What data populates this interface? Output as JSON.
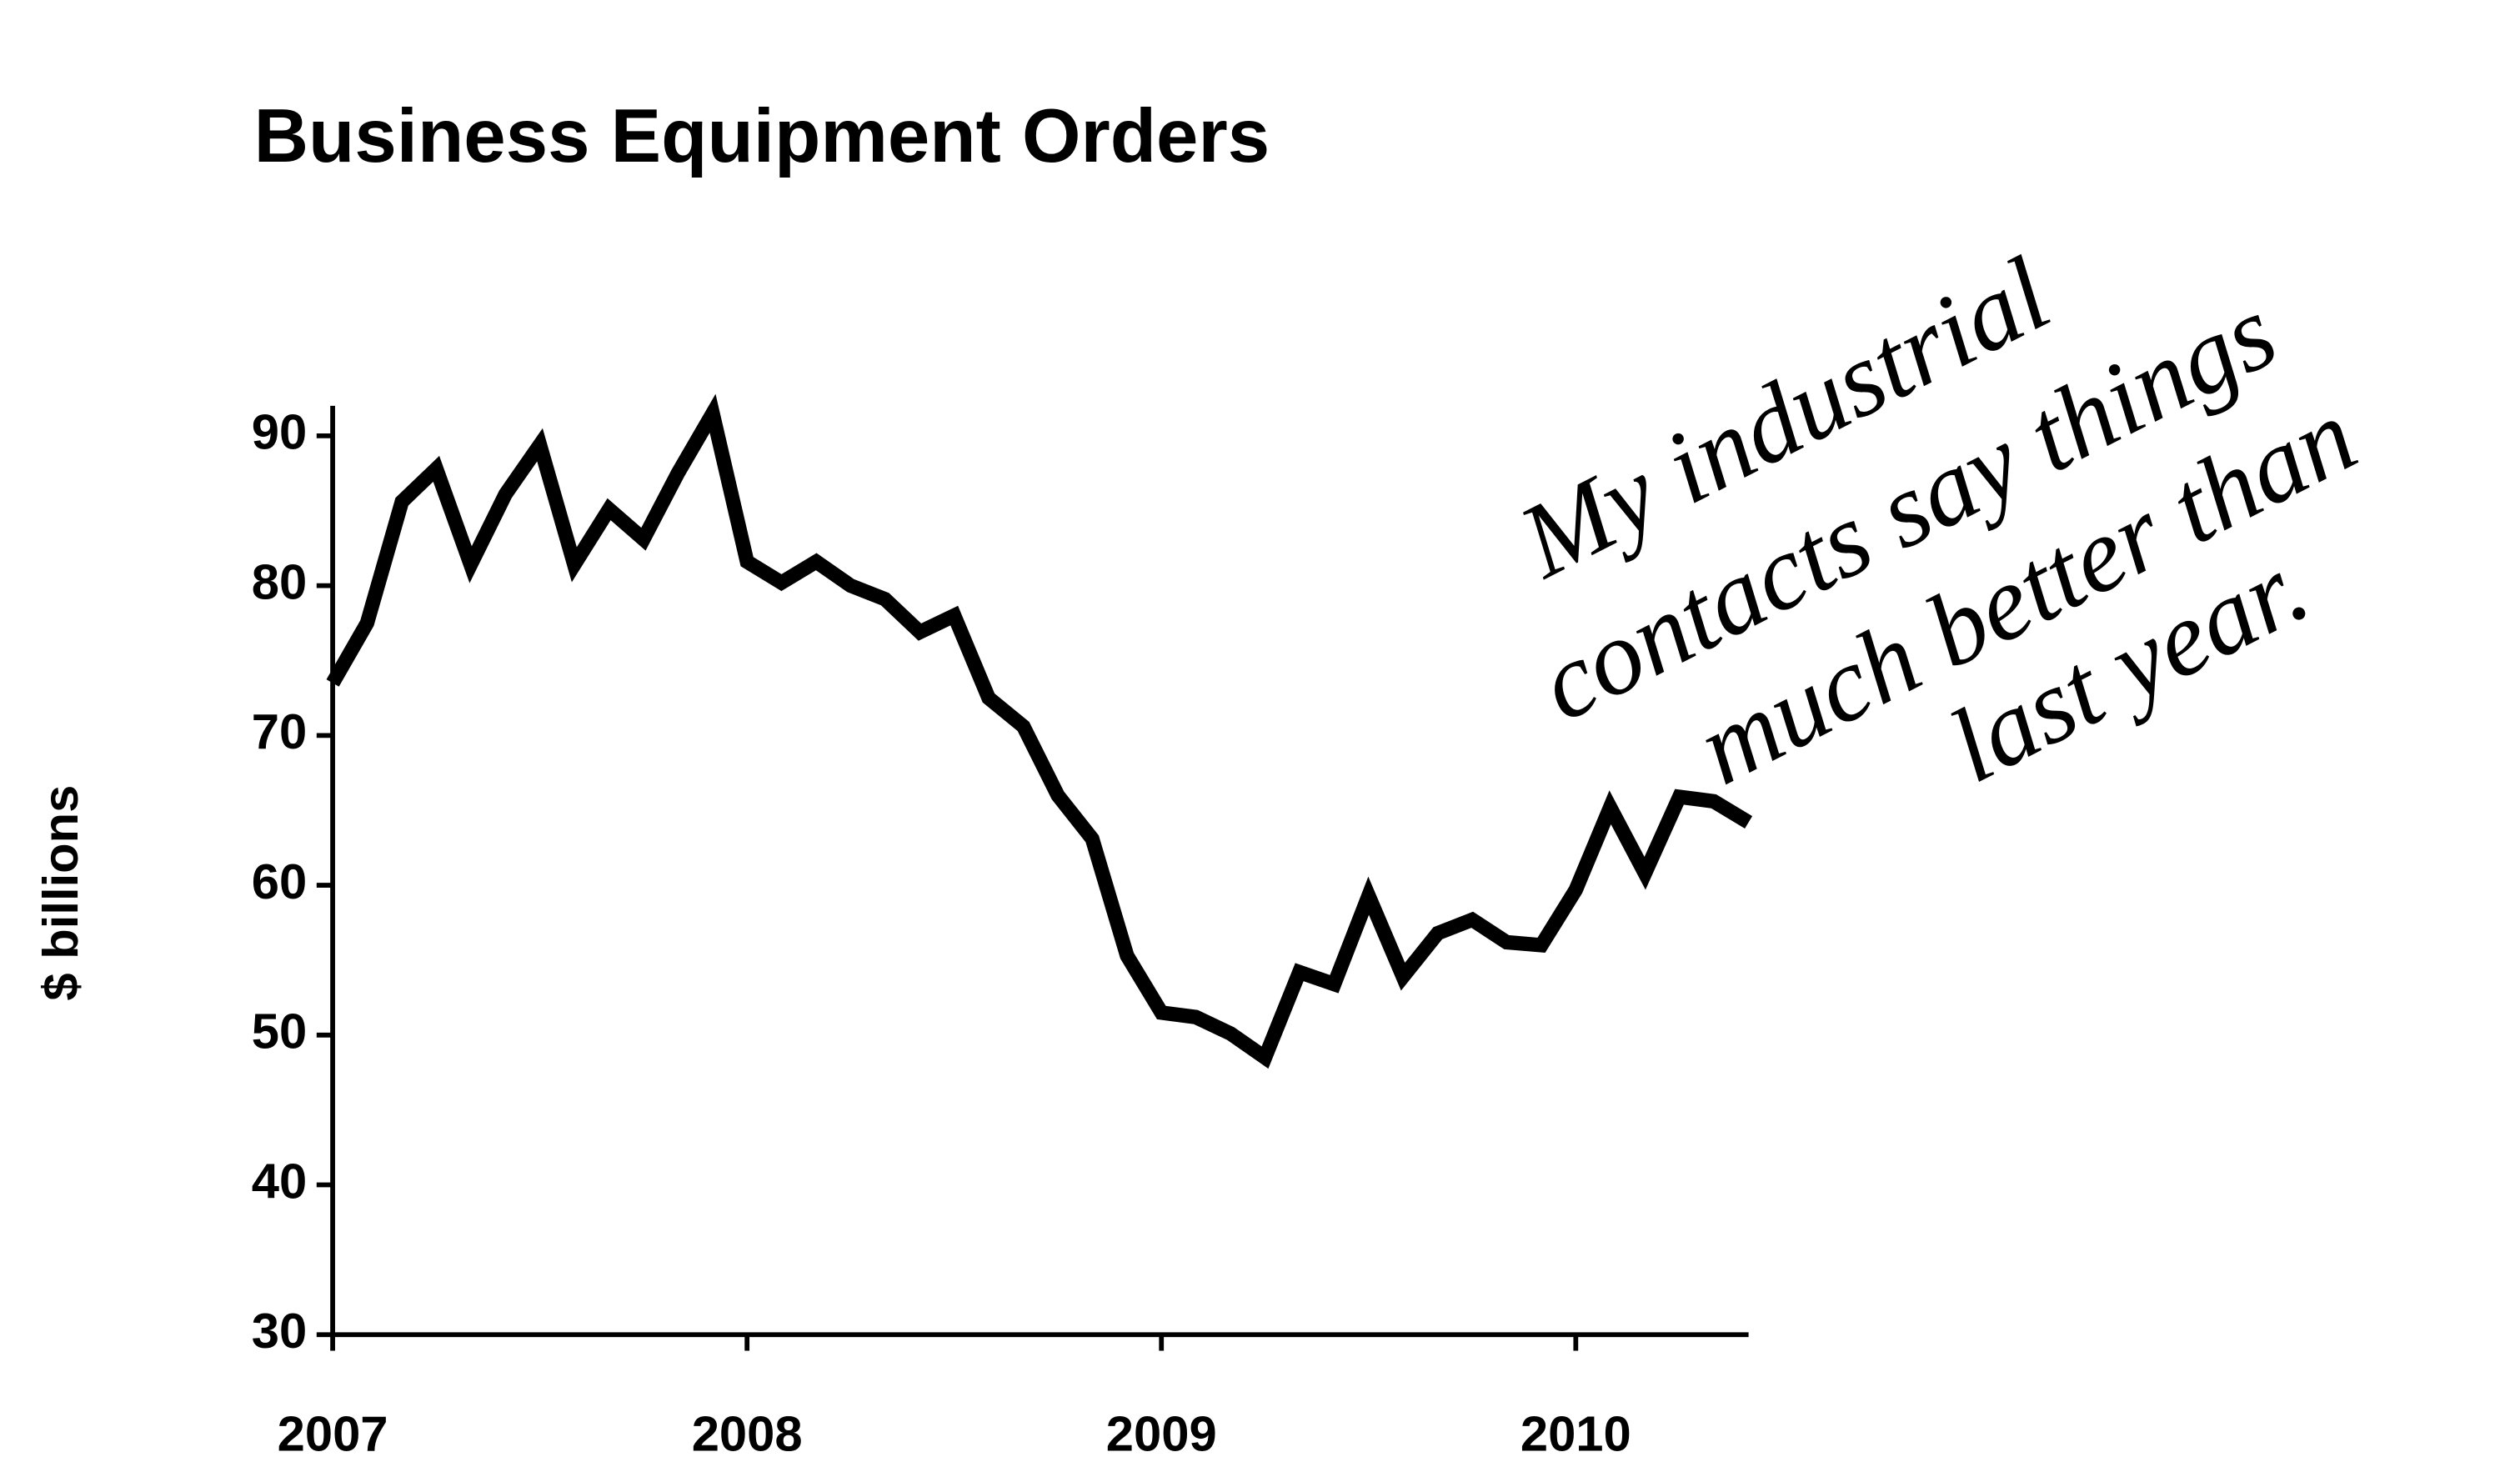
{
  "chart_data": {
    "type": "line",
    "title": "Business Equipment Orders",
    "y_label": "$ billions",
    "annotation": [
      "My industrial",
      "contacts say things",
      "much better than",
      "last year."
    ],
    "x": [
      2007,
      2007.083,
      2007.167,
      2007.25,
      2007.333,
      2007.417,
      2007.5,
      2007.583,
      2007.667,
      2007.75,
      2007.833,
      2007.917,
      2008,
      2008.083,
      2008.167,
      2008.25,
      2008.333,
      2008.417,
      2008.5,
      2008.583,
      2008.667,
      2008.75,
      2008.833,
      2008.917,
      2009,
      2009.083,
      2009.167,
      2009.25,
      2009.333,
      2009.417,
      2009.5,
      2009.583,
      2009.667,
      2009.75,
      2009.833,
      2009.917,
      2010,
      2010.083,
      2010.167,
      2010.25,
      2010.333,
      2010.417
    ],
    "values": [
      73.5,
      77.5,
      85.6,
      87.8,
      81.4,
      86.1,
      89.4,
      81.4,
      85.1,
      83.1,
      87.5,
      91.5,
      81.6,
      80.2,
      81.6,
      80.0,
      79.1,
      76.9,
      78.0,
      72.5,
      70.6,
      66.0,
      63.1,
      55.3,
      51.5,
      51.2,
      50.1,
      48.5,
      54.2,
      53.4,
      59.3,
      53.9,
      56.8,
      57.7,
      56.2,
      56.0,
      59.7,
      65.2,
      60.8,
      65.9,
      65.6,
      64.2
    ],
    "color": "#000000",
    "xlim": [
      2007,
      2010.417
    ],
    "xticks": [
      2007,
      2008,
      2009,
      2010
    ],
    "ylim": [
      30,
      92
    ],
    "yticks": [
      30,
      40,
      50,
      60,
      70,
      80,
      90
    ],
    "grid": false
  }
}
